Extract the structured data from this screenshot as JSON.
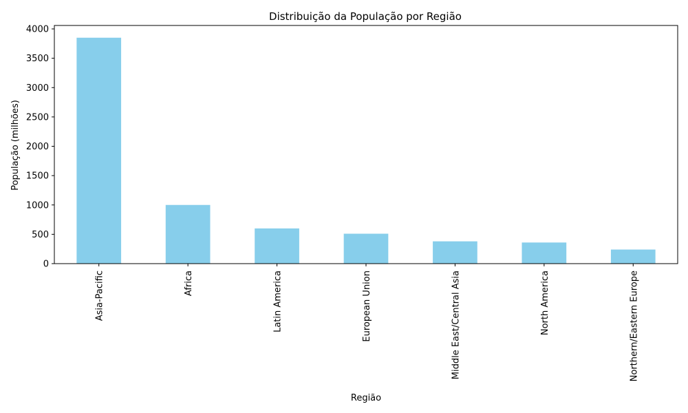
{
  "chart_data": {
    "type": "bar",
    "title": "Distribuição da População por Região",
    "xlabel": "Região",
    "ylabel": "População (milhões)",
    "categories": [
      "Asia-Pacific",
      "Africa",
      "Latin America",
      "European Union",
      "Middle East/Central Asia",
      "North America",
      "Northern/Eastern Europe"
    ],
    "values": [
      3850,
      1000,
      600,
      510,
      380,
      360,
      240
    ],
    "ylim": [
      0,
      4000
    ],
    "yticks": [
      "0",
      "500",
      "1000",
      "1500",
      "2000",
      "2500",
      "3000",
      "3500",
      "4000"
    ],
    "grid": false,
    "bar_color": "#87ceeb"
  }
}
